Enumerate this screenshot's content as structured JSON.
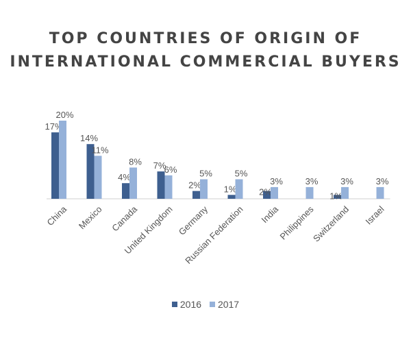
{
  "title_lines": [
    "TOP COUNTRIES OF ORIGIN OF",
    "INTERNATIONAL COMMERCIAL BUYERS"
  ],
  "colors": {
    "series_2016": "#3e5f8f",
    "series_2017": "#95b1d9",
    "axis": "#cfcfcf"
  },
  "chart_data": {
    "type": "bar",
    "title": "TOP COUNTRIES OF ORIGIN OF INTERNATIONAL COMMERCIAL BUYERS",
    "categories": [
      "China",
      "Mexico",
      "Canada",
      "United Kingdom",
      "Germany",
      "Russian Federation",
      "India",
      "Philippines",
      "Switzerland",
      "Israel"
    ],
    "series": [
      {
        "name": "2016",
        "values": [
          17,
          14,
          4,
          7,
          2,
          1,
          2,
          null,
          1,
          null
        ],
        "labels": [
          "17%",
          "14%",
          "4%",
          "7%",
          "2%",
          "1%",
          "2%",
          "",
          "1%",
          ""
        ]
      },
      {
        "name": "2017",
        "values": [
          20,
          11,
          8,
          6,
          5,
          5,
          3,
          3,
          3,
          3
        ],
        "labels": [
          "20%",
          "11%",
          "8%",
          "6%",
          "5%",
          "5%",
          "3%",
          "3%",
          "3%",
          "3%"
        ]
      }
    ],
    "ylim": [
      0,
      20
    ],
    "grid": false,
    "legend_position": "bottom"
  }
}
